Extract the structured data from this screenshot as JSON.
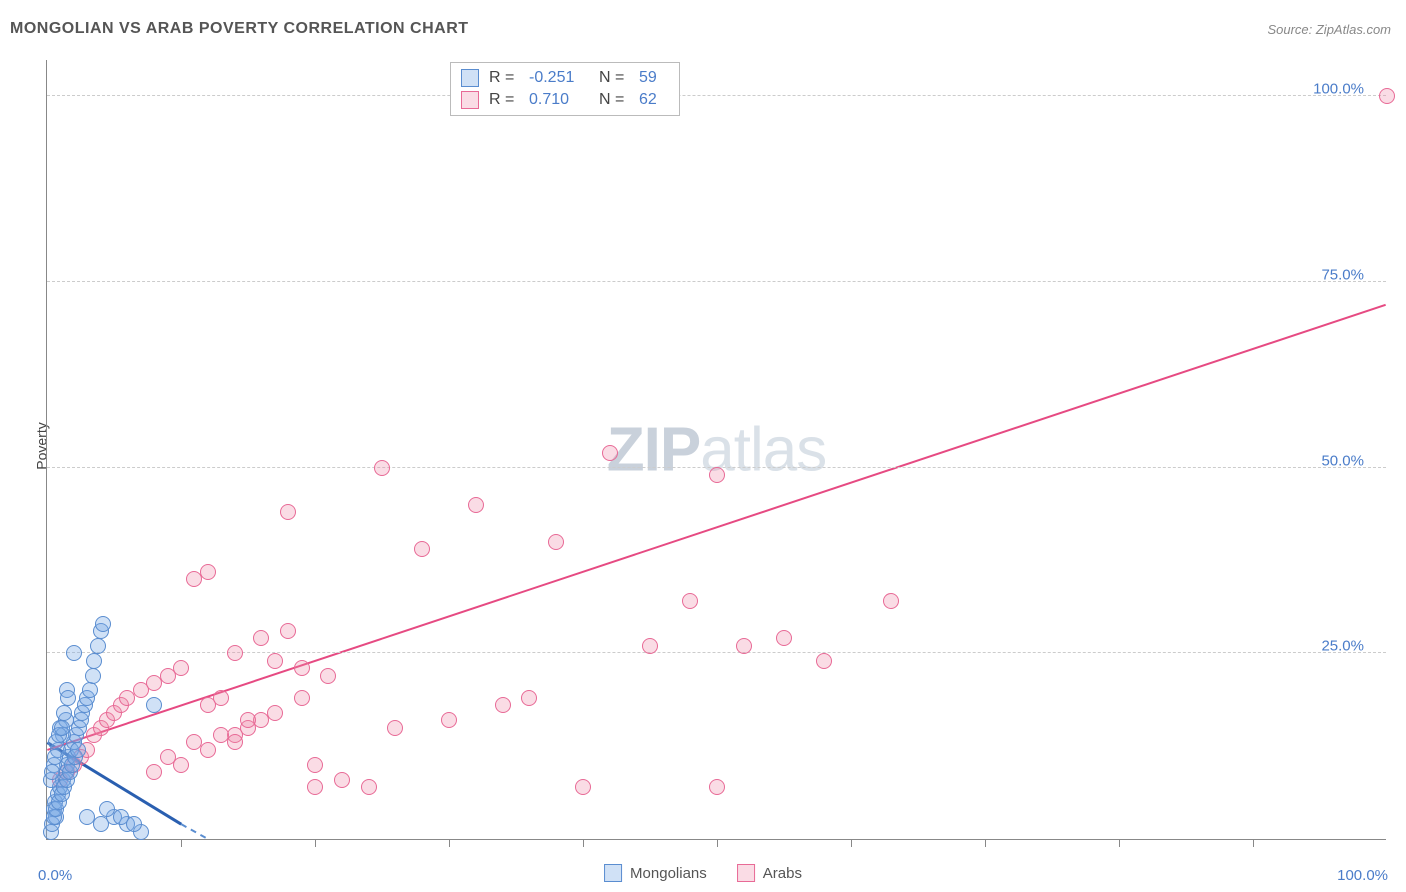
{
  "title": "MONGOLIAN VS ARAB POVERTY CORRELATION CHART",
  "source_label": "Source: ZipAtlas.com",
  "ylabel": "Poverty",
  "watermark": {
    "part1": "ZIP",
    "part2": "atlas"
  },
  "chart": {
    "type": "scatter",
    "background_color": "#ffffff",
    "grid_color": "#cccccc",
    "axis_color": "#888888",
    "xlim": [
      0,
      100
    ],
    "ylim": [
      0,
      105
    ],
    "x_ticks_major": [
      0,
      100
    ],
    "x_ticks_minor": [
      10,
      20,
      30,
      40,
      50,
      60,
      70,
      80,
      90
    ],
    "x_tick_labels": {
      "0": "0.0%",
      "100": "100.0%"
    },
    "y_gridlines": [
      25,
      50,
      75,
      100
    ],
    "y_tick_labels": {
      "25": "25.0%",
      "50": "50.0%",
      "75": "75.0%",
      "100": "100.0%"
    },
    "tick_label_color": "#4a7cc9",
    "tick_label_fontsize": 15,
    "title_fontsize": 16,
    "title_color": "#555555",
    "marker_radius": 8,
    "marker_stroke_width": 1.5,
    "line_width": 2
  },
  "series": {
    "mongolians": {
      "label": "Mongolians",
      "fill_color": "rgba(120,170,230,0.35)",
      "stroke_color": "#5a8dd0",
      "r_value": "-0.251",
      "n_value": "59",
      "trendline": {
        "x1": 0,
        "y1": 13,
        "x2": 10,
        "y2": 2,
        "dashed_extension": {
          "x1": 10,
          "y1": 2,
          "x2": 12,
          "y2": 0
        }
      },
      "points": [
        [
          0.3,
          1
        ],
        [
          0.4,
          2
        ],
        [
          0.5,
          4
        ],
        [
          0.6,
          5
        ],
        [
          0.7,
          3
        ],
        [
          0.8,
          6
        ],
        [
          1,
          7
        ],
        [
          1.2,
          8
        ],
        [
          1.4,
          9
        ],
        [
          1.5,
          10
        ],
        [
          1.6,
          11
        ],
        [
          1.8,
          12
        ],
        [
          2,
          13
        ],
        [
          2.2,
          14
        ],
        [
          2.4,
          15
        ],
        [
          2.5,
          16
        ],
        [
          2.6,
          17
        ],
        [
          2.8,
          18
        ],
        [
          3,
          19
        ],
        [
          3.2,
          20
        ],
        [
          3.4,
          22
        ],
        [
          3.5,
          24
        ],
        [
          3.8,
          26
        ],
        [
          4,
          28
        ],
        [
          4.2,
          29
        ],
        [
          1,
          15
        ],
        [
          1.5,
          20
        ],
        [
          2,
          25
        ],
        [
          0.5,
          10
        ],
        [
          0.8,
          12
        ],
        [
          1.2,
          14
        ],
        [
          1.4,
          16
        ],
        [
          0.3,
          8
        ],
        [
          0.4,
          9
        ],
        [
          0.6,
          11
        ],
        [
          0.7,
          13
        ],
        [
          0.9,
          14
        ],
        [
          1.1,
          15
        ],
        [
          1.3,
          17
        ],
        [
          1.6,
          19
        ],
        [
          0.5,
          3
        ],
        [
          0.7,
          4
        ],
        [
          0.9,
          5
        ],
        [
          1.1,
          6
        ],
        [
          1.3,
          7
        ],
        [
          1.5,
          8
        ],
        [
          1.7,
          9
        ],
        [
          1.9,
          10
        ],
        [
          2.1,
          11
        ],
        [
          2.3,
          12
        ],
        [
          3,
          3
        ],
        [
          4,
          2
        ],
        [
          5,
          3
        ],
        [
          6,
          2
        ],
        [
          7,
          1
        ],
        [
          4.5,
          4
        ],
        [
          5.5,
          3
        ],
        [
          6.5,
          2
        ],
        [
          8,
          18
        ]
      ]
    },
    "arabs": {
      "label": "Arabs",
      "fill_color": "rgba(240,140,170,0.3)",
      "stroke_color": "#e86a96",
      "r_value": "0.710",
      "n_value": "62",
      "trendline": {
        "x1": 0,
        "y1": 12,
        "x2": 100,
        "y2": 72
      },
      "points": [
        [
          1,
          8
        ],
        [
          1.5,
          9
        ],
        [
          2,
          10
        ],
        [
          2.5,
          11
        ],
        [
          3,
          12
        ],
        [
          3.5,
          14
        ],
        [
          4,
          15
        ],
        [
          4.5,
          16
        ],
        [
          5,
          17
        ],
        [
          5.5,
          18
        ],
        [
          6,
          19
        ],
        [
          7,
          20
        ],
        [
          8,
          21
        ],
        [
          9,
          22
        ],
        [
          10,
          23
        ],
        [
          11,
          35
        ],
        [
          12,
          18
        ],
        [
          13,
          19
        ],
        [
          14,
          14
        ],
        [
          15,
          15
        ],
        [
          16,
          16
        ],
        [
          17,
          17
        ],
        [
          18,
          44
        ],
        [
          19,
          19
        ],
        [
          20,
          10
        ],
        [
          12,
          36
        ],
        [
          14,
          25
        ],
        [
          16,
          27
        ],
        [
          18,
          28
        ],
        [
          20,
          7
        ],
        [
          22,
          8
        ],
        [
          24,
          7
        ],
        [
          25,
          50
        ],
        [
          26,
          15
        ],
        [
          28,
          39
        ],
        [
          30,
          16
        ],
        [
          32,
          45
        ],
        [
          34,
          18
        ],
        [
          36,
          19
        ],
        [
          38,
          40
        ],
        [
          40,
          7
        ],
        [
          42,
          52
        ],
        [
          45,
          26
        ],
        [
          48,
          32
        ],
        [
          50,
          49
        ],
        [
          52,
          26
        ],
        [
          55,
          27
        ],
        [
          58,
          24
        ],
        [
          50,
          7
        ],
        [
          100,
          100
        ],
        [
          63,
          32
        ],
        [
          10,
          10
        ],
        [
          12,
          12
        ],
        [
          14,
          13
        ],
        [
          8,
          9
        ],
        [
          9,
          11
        ],
        [
          11,
          13
        ],
        [
          13,
          14
        ],
        [
          15,
          16
        ],
        [
          17,
          24
        ],
        [
          19,
          23
        ],
        [
          21,
          22
        ]
      ]
    }
  },
  "legend_top": {
    "r_label": "R =",
    "n_label": "N ="
  },
  "legend_bottom": {
    "items": [
      "mongolians",
      "arabs"
    ]
  }
}
